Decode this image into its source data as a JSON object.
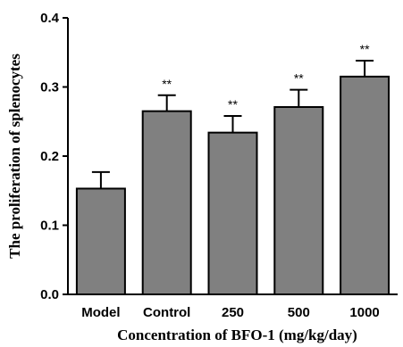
{
  "chart_data": {
    "type": "bar",
    "categories": [
      "Model",
      "Control",
      "250",
      "500",
      "1000"
    ],
    "values": [
      0.153,
      0.265,
      0.234,
      0.271,
      0.315
    ],
    "errors": [
      0.024,
      0.023,
      0.024,
      0.025,
      0.023
    ],
    "significance": [
      "",
      "**",
      "**",
      "**",
      "**"
    ],
    "xlabel": "Concentration of BFO-1 (mg/kg/day)",
    "ylabel": "The proliferation of splenocytes",
    "ylim": [
      0.0,
      0.4
    ],
    "yticks": [
      0.0,
      0.1,
      0.2,
      0.3,
      0.4
    ],
    "ytick_labels": [
      "0.0",
      "0.1",
      "0.2",
      "0.3",
      "0.4"
    ],
    "grid": false,
    "bar_color": "#808080"
  }
}
